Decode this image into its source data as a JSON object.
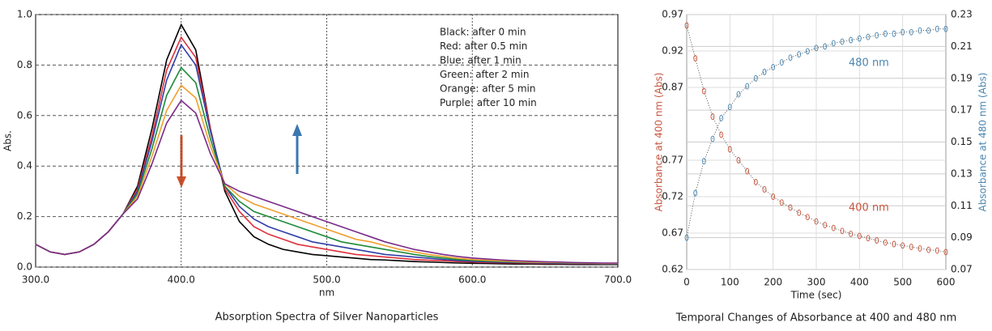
{
  "chart_data": [
    {
      "type": "line",
      "title": "Absorption Spectra of Silver Nanoparticles",
      "xlabel": "nm",
      "ylabel": "Abs.",
      "x": [
        300,
        310,
        320,
        330,
        340,
        350,
        360,
        370,
        380,
        390,
        400,
        410,
        420,
        430,
        440,
        450,
        460,
        470,
        480,
        490,
        500,
        510,
        520,
        530,
        540,
        550,
        560,
        570,
        580,
        590,
        600,
        610,
        620,
        630,
        640,
        650,
        660,
        670,
        680,
        690,
        700
      ],
      "series": [
        {
          "name": "Black: after 0 min",
          "color": "#000000",
          "values": [
            0.09,
            0.06,
            0.05,
            0.06,
            0.09,
            0.14,
            0.21,
            0.32,
            0.55,
            0.82,
            0.96,
            0.86,
            0.55,
            0.3,
            0.18,
            0.12,
            0.09,
            0.07,
            0.06,
            0.05,
            0.045,
            0.04,
            0.035,
            0.03,
            0.028,
            0.025,
            0.022,
            0.02,
            0.018,
            0.016,
            0.015,
            0.014,
            0.013,
            0.012,
            0.012,
            0.011,
            0.011,
            0.01,
            0.01,
            0.01,
            0.01
          ]
        },
        {
          "name": "Red: after 0.5 min",
          "color": "#e0303a",
          "values": [
            0.09,
            0.06,
            0.05,
            0.06,
            0.09,
            0.14,
            0.21,
            0.31,
            0.52,
            0.78,
            0.91,
            0.83,
            0.55,
            0.31,
            0.22,
            0.16,
            0.13,
            0.11,
            0.09,
            0.08,
            0.07,
            0.06,
            0.05,
            0.045,
            0.04,
            0.035,
            0.03,
            0.027,
            0.025,
            0.022,
            0.02,
            0.018,
            0.017,
            0.016,
            0.015,
            0.014,
            0.014,
            0.013,
            0.013,
            0.012,
            0.012
          ]
        },
        {
          "name": "Blue: after 1 min",
          "color": "#2f3fa8",
          "values": [
            0.09,
            0.06,
            0.05,
            0.06,
            0.09,
            0.14,
            0.21,
            0.3,
            0.5,
            0.74,
            0.88,
            0.8,
            0.54,
            0.32,
            0.24,
            0.19,
            0.16,
            0.14,
            0.12,
            0.1,
            0.09,
            0.08,
            0.07,
            0.06,
            0.05,
            0.045,
            0.04,
            0.035,
            0.03,
            0.026,
            0.023,
            0.021,
            0.019,
            0.018,
            0.017,
            0.016,
            0.015,
            0.014,
            0.014,
            0.013,
            0.013
          ]
        },
        {
          "name": "Green: after 2 min",
          "color": "#1f8a3a",
          "values": [
            0.09,
            0.06,
            0.05,
            0.06,
            0.09,
            0.14,
            0.21,
            0.29,
            0.47,
            0.68,
            0.79,
            0.73,
            0.51,
            0.32,
            0.26,
            0.22,
            0.2,
            0.18,
            0.16,
            0.14,
            0.12,
            0.1,
            0.09,
            0.08,
            0.07,
            0.06,
            0.05,
            0.042,
            0.036,
            0.03,
            0.027,
            0.024,
            0.022,
            0.02,
            0.019,
            0.018,
            0.017,
            0.016,
            0.015,
            0.014,
            0.014
          ]
        },
        {
          "name": "Orange: after 5 min",
          "color": "#f0a030",
          "values": [
            0.09,
            0.06,
            0.05,
            0.06,
            0.09,
            0.14,
            0.21,
            0.28,
            0.44,
            0.62,
            0.72,
            0.67,
            0.48,
            0.33,
            0.28,
            0.25,
            0.23,
            0.21,
            0.19,
            0.17,
            0.15,
            0.13,
            0.11,
            0.1,
            0.085,
            0.07,
            0.06,
            0.05,
            0.042,
            0.035,
            0.03,
            0.027,
            0.024,
            0.022,
            0.02,
            0.019,
            0.018,
            0.017,
            0.016,
            0.015,
            0.015
          ]
        },
        {
          "name": "Purple: after 10 min",
          "color": "#7a2a8a",
          "values": [
            0.09,
            0.06,
            0.05,
            0.06,
            0.09,
            0.14,
            0.21,
            0.27,
            0.41,
            0.57,
            0.66,
            0.61,
            0.45,
            0.33,
            0.3,
            0.28,
            0.26,
            0.24,
            0.22,
            0.2,
            0.18,
            0.16,
            0.14,
            0.12,
            0.1,
            0.085,
            0.07,
            0.06,
            0.05,
            0.042,
            0.036,
            0.032,
            0.028,
            0.025,
            0.023,
            0.021,
            0.02,
            0.018,
            0.017,
            0.016,
            0.016
          ]
        }
      ],
      "xlim": [
        300,
        700
      ],
      "xticks": [
        {
          "value": 300,
          "label": "300.0"
        },
        {
          "value": 400,
          "label": "400.0"
        },
        {
          "value": 500,
          "label": "500.0"
        },
        {
          "value": 600,
          "label": "600.0"
        },
        {
          "value": 700,
          "label": "700.0"
        }
      ],
      "ylim": [
        0,
        1
      ],
      "yticks": [
        {
          "value": 0,
          "label": "0.0"
        },
        0.2,
        0.4,
        0.6,
        0.8,
        {
          "value": 1,
          "label": "1.0"
        }
      ],
      "grid": true
    },
    {
      "type": "scatter",
      "title": "Temporal Changes of Absorbance at 400 and 480 nm",
      "xlabel": "Time (sec)",
      "ylabel": "Absorbance at 400 nm (Abs)",
      "y2label": "Absorbance at 480 nm (Abs)",
      "annotations": [
        "480 nm",
        "400 nm"
      ],
      "x": [
        0,
        20,
        40,
        60,
        80,
        100,
        120,
        140,
        160,
        180,
        200,
        220,
        240,
        260,
        280,
        300,
        320,
        340,
        360,
        380,
        400,
        420,
        440,
        460,
        480,
        500,
        520,
        540,
        560,
        580,
        600
      ],
      "series": [
        {
          "name": "400 nm",
          "color": "#c8553d",
          "values": [
            0.955,
            0.91,
            0.865,
            0.83,
            0.805,
            0.785,
            0.77,
            0.755,
            0.74,
            0.73,
            0.72,
            0.712,
            0.705,
            0.698,
            0.692,
            0.686,
            0.681,
            0.677,
            0.673,
            0.669,
            0.666,
            0.663,
            0.66,
            0.657,
            0.655,
            0.653,
            0.651,
            0.649,
            0.647,
            0.646,
            0.644
          ]
        },
        {
          "name": "480 nm",
          "color": "#4a86b0",
          "axis": "y2",
          "values": [
            0.09,
            0.118,
            0.138,
            0.152,
            0.165,
            0.172,
            0.18,
            0.185,
            0.19,
            0.194,
            0.197,
            0.2,
            0.203,
            0.205,
            0.207,
            0.209,
            0.21,
            0.212,
            0.213,
            0.214,
            0.215,
            0.216,
            0.217,
            0.218,
            0.218,
            0.219,
            0.219,
            0.22,
            0.22,
            0.221,
            0.221
          ]
        }
      ],
      "xlim": [
        0,
        600
      ],
      "xticks": [
        0,
        100,
        200,
        300,
        400,
        500,
        600
      ],
      "ylim": [
        0.62,
        0.97
      ],
      "yticks": [
        0.62,
        0.67,
        0.72,
        0.77,
        0.87,
        0.92,
        0.97
      ],
      "y2lim": [
        0.07,
        0.23
      ],
      "y2ticks": [
        0.07,
        0.09,
        0.11,
        0.13,
        0.15,
        0.17,
        0.19,
        0.21,
        0.23
      ],
      "grid": true
    }
  ]
}
